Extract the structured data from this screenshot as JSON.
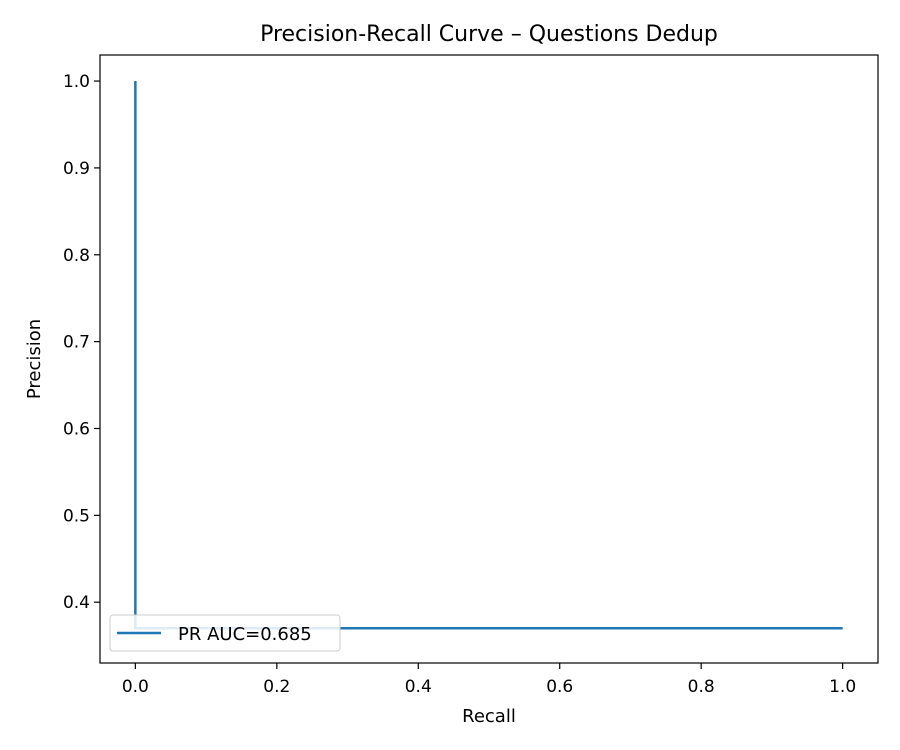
{
  "chart_data": {
    "type": "line",
    "title": "Precision-Recall Curve – Questions Dedup",
    "xlabel": "Recall",
    "ylabel": "Precision",
    "xlim": [
      -0.05,
      1.05
    ],
    "ylim": [
      0.33,
      1.03
    ],
    "xticks": [
      0.0,
      0.2,
      0.4,
      0.6,
      0.8,
      1.0
    ],
    "xtick_labels": [
      "0.0",
      "0.2",
      "0.4",
      "0.6",
      "0.8",
      "1.0"
    ],
    "yticks": [
      0.4,
      0.5,
      0.6,
      0.7,
      0.8,
      0.9,
      1.0
    ],
    "ytick_labels": [
      "0.4",
      "0.5",
      "0.6",
      "0.7",
      "0.8",
      "0.9",
      "1.0"
    ],
    "grid": false,
    "legend_position": "lower-left",
    "series": [
      {
        "name": "PR AUC=0.685",
        "color": "#1f77b4",
        "x": [
          0.0,
          0.0,
          0.0,
          1.0
        ],
        "y": [
          1.0,
          0.37,
          0.37,
          0.37
        ]
      }
    ]
  }
}
